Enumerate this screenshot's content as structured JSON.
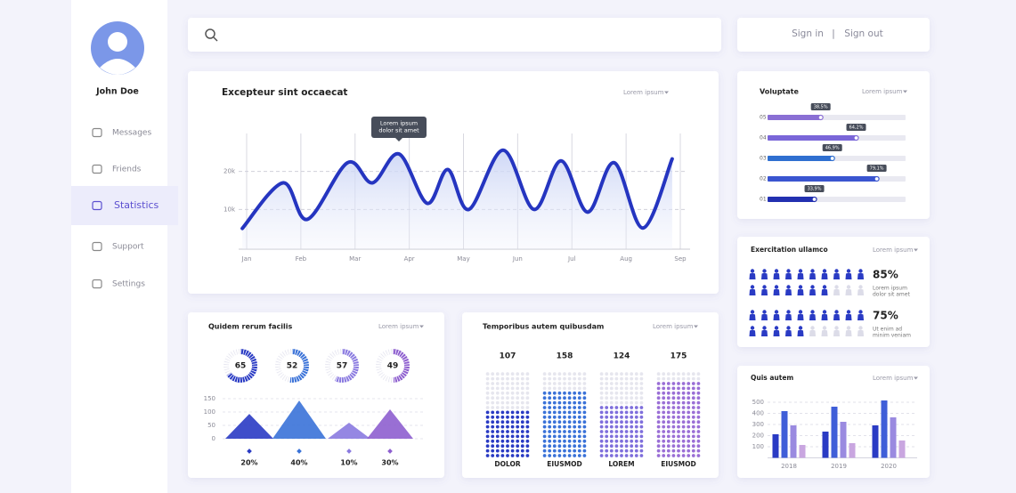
{
  "sidebar": {
    "user": "John Doe",
    "menu": [
      "Messages",
      "Friends",
      "Statistics",
      "Support",
      "Settings"
    ],
    "active": 2
  },
  "header": {
    "sign_in": "Sign in",
    "separator": "|",
    "sign_out": "Sign out"
  },
  "main_chart": {
    "type": "line",
    "title": "Excepteur sint occaecat",
    "dropdown": "Lorem ipsum",
    "tooltip": [
      "Lorem ipsum",
      "dolor sit amet"
    ],
    "categories": [
      "Jan",
      "Feb",
      "Mar",
      "Apr",
      "May",
      "Jun",
      "Jul",
      "Aug",
      "Sep"
    ],
    "x": [
      -0.08,
      0.67,
      1.12,
      1.86,
      2.32,
      2.81,
      3.33,
      3.71,
      4.1,
      4.73,
      5.3,
      5.8,
      6.29,
      6.78,
      7.31,
      7.85
    ],
    "values": [
      5000,
      17000,
      7400,
      22300,
      17000,
      24600,
      11600,
      20500,
      10000,
      25600,
      10000,
      22800,
      9300,
      22300,
      5100,
      23300
    ],
    "xlim": [
      0,
      8
    ],
    "ylim": [
      0,
      30000
    ],
    "yticks": [
      {
        "value": 10000,
        "label": "10k"
      },
      {
        "value": 20000,
        "label": "20k"
      }
    ],
    "color": "#2535c0",
    "grid": true
  },
  "quidem": {
    "title": "Quidem rerum facilis",
    "dropdown": "Lorem ipsum",
    "donuts": {
      "values": [
        65,
        52,
        57,
        49
      ],
      "colors": [
        "#2a3bc4",
        "#3a72d8",
        "#8a7ae0",
        "#8e5fcf"
      ]
    },
    "triangles": {
      "type": "triangle",
      "values": [
        93,
        143,
        60,
        110
      ],
      "colors": [
        "#2a3bc4",
        "#3a72d8",
        "#8a7ae0",
        "#8e5fcf"
      ],
      "ylim": [
        0,
        150
      ],
      "yticks": [
        0,
        50,
        100,
        150
      ],
      "shares": [
        20,
        40,
        10,
        30
      ],
      "value_labels": [
        "20%",
        "40%",
        "10%",
        "30%"
      ]
    }
  },
  "temporibus": {
    "type": "dot-matrix",
    "title": "Temporibus autem quibusdam",
    "dropdown": "Lorem ipsum",
    "categories": [
      "DOLOR",
      "EIUSMOD",
      "LOREM",
      "EIUSMOD"
    ],
    "values": [
      107,
      158,
      124,
      175
    ],
    "ylim": [
      0,
      200
    ],
    "colors": [
      "#2a3bc4",
      "#3a72d8",
      "#7f6fdc",
      "#9a6fd6"
    ]
  },
  "voluptate": {
    "type": "hbar",
    "title": "Voluptate",
    "dropdown": "Lorem ipsum",
    "categories": [
      "05",
      "04",
      "03",
      "02",
      "01"
    ],
    "values": [
      38.5,
      64.2,
      46.9,
      79.1,
      33.9
    ],
    "value_labels": [
      "38,5%",
      "64,2%",
      "46,9%",
      "79,1%",
      "33,9%"
    ],
    "xlim": [
      0,
      100
    ],
    "colors": [
      "#8a6fd4",
      "#7a66d8",
      "#2f6fd0",
      "#3a55d0",
      "#2230b0"
    ]
  },
  "exercitation": {
    "type": "pictogram",
    "title": "Exercitation ullamco",
    "dropdown": "Lorem ipsum",
    "values": [
      85,
      75
    ],
    "value_labels": [
      "85%",
      "75%"
    ],
    "captions": [
      [
        "Lorem ipsum",
        "dolor sit amet"
      ],
      [
        "Ut enim ad",
        "minim veniam"
      ]
    ],
    "color": "#2a3bc4"
  },
  "quis": {
    "type": "grouped-bar",
    "title": "Quis autem",
    "dropdown": "Lorem ipsum",
    "categories": [
      "2018",
      "2019",
      "2020"
    ],
    "series": [
      {
        "color": "#2a3bc4",
        "values": [
          212,
          236,
          292
        ]
      },
      {
        "color": "#3f5ed8",
        "values": [
          420,
          460,
          516
        ]
      },
      {
        "color": "#9a8ae0",
        "values": [
          292,
          324,
          364
        ]
      },
      {
        "color": "#c9a6e0",
        "values": [
          116,
          132,
          156
        ]
      }
    ],
    "ylim": [
      0,
      520
    ],
    "yticks": [
      100,
      200,
      300,
      400,
      500
    ],
    "grid": true
  }
}
